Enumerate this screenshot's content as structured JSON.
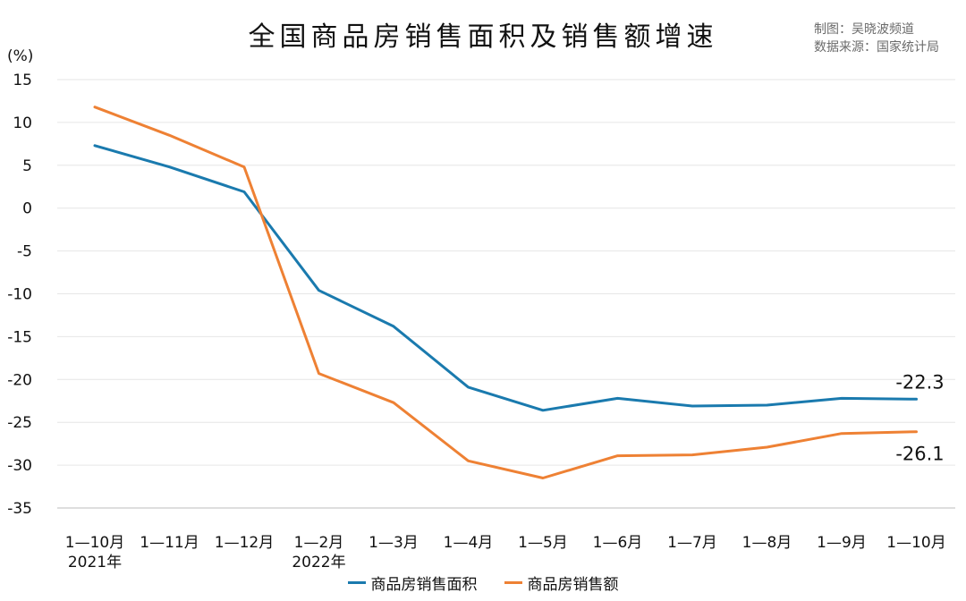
{
  "title": "全国商品房销售面积及销售额增速",
  "credits": [
    "制图：吴晓波频道",
    "数据来源：国家统计局"
  ],
  "chart_data": {
    "type": "line",
    "ylabel": "(%)",
    "ylim": [
      -35,
      15
    ],
    "yticks": [
      15,
      10,
      5,
      0,
      -5,
      -10,
      -15,
      -20,
      -25,
      -30,
      -35
    ],
    "grid": true,
    "legend_position": "bottom",
    "categories": [
      "1—10月",
      "1—11月",
      "1—12月",
      "1—2月",
      "1—3月",
      "1—4月",
      "1—5月",
      "1—6月",
      "1—7月",
      "1—8月",
      "1—9月",
      "1—10月"
    ],
    "category_sublabels": [
      "2021年",
      "",
      "",
      "2022年",
      "",
      "",
      "",
      "",
      "",
      "",
      "",
      ""
    ],
    "series": [
      {
        "name": "商品房销售面积",
        "color": "#1a7aae",
        "values": [
          7.3,
          4.8,
          1.9,
          -9.6,
          -13.8,
          -20.9,
          -23.6,
          -22.2,
          -23.1,
          -23.0,
          -22.2,
          -22.3
        ]
      },
      {
        "name": "商品房销售额",
        "color": "#ee8134",
        "values": [
          11.8,
          8.5,
          4.8,
          -19.3,
          -22.7,
          -29.5,
          -31.5,
          -28.9,
          -28.8,
          -27.9,
          -26.3,
          -26.1
        ]
      }
    ],
    "end_labels": [
      "-22.3",
      "-26.1"
    ]
  }
}
